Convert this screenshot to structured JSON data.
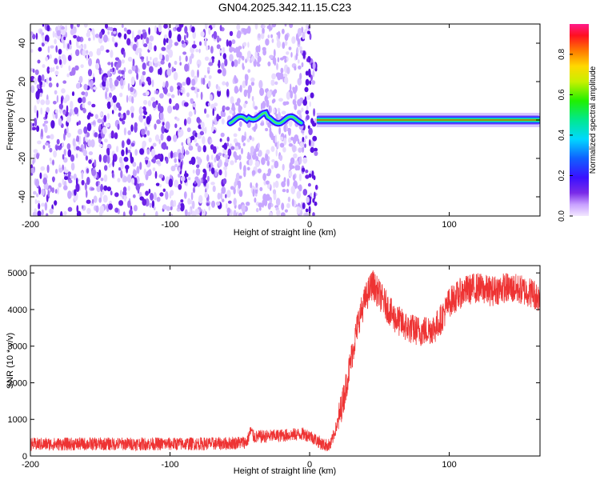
{
  "title": "GN04.2025.342.11.15.C23",
  "chart_data": [
    {
      "type": "heatmap",
      "name": "spectrogram",
      "xlabel": "Height of straight line (km)",
      "ylabel": "Frequency (Hz)",
      "xlim": [
        -200,
        165
      ],
      "ylim": [
        -50,
        50
      ],
      "xticks": [
        -200,
        -100,
        0,
        100
      ],
      "yticks": [
        -40,
        -20,
        0,
        20,
        40
      ],
      "description_of_values": {
        "noise_region_x": [
          -200,
          5
        ],
        "faded_region_x": [
          -55,
          5
        ],
        "signal_band_freq": 0,
        "signal_band_x": [
          -57,
          165
        ],
        "wobbly_segment_x": [
          -57,
          -5
        ],
        "strong_line_x": [
          5,
          165
        ]
      },
      "colorbar": {
        "label": "Normalized spectral amplitude",
        "range": [
          0,
          0.95
        ],
        "ticks": [
          0.0,
          0.2,
          0.4,
          0.6,
          0.8
        ]
      }
    },
    {
      "type": "line",
      "name": "snr",
      "xlabel": "Height of straight line (km)",
      "ylabel": "SNR (10 * v/v)",
      "xlim": [
        -200,
        165
      ],
      "ylim": [
        0,
        5200
      ],
      "xticks": [
        -200,
        -100,
        0,
        100
      ],
      "yticks": [
        0,
        1000,
        2000,
        3000,
        4000,
        5000
      ],
      "color": "#ee3333",
      "series": [
        {
          "name": "SNR",
          "x": [
            -200,
            -150,
            -100,
            -60,
            -45,
            -42,
            -40,
            -20,
            -5,
            0,
            10,
            15,
            20,
            25,
            30,
            35,
            40,
            45,
            50,
            60,
            70,
            80,
            90,
            95,
            100,
            110,
            120,
            130,
            140,
            150,
            160,
            165
          ],
          "y": [
            320,
            330,
            330,
            340,
            380,
            700,
            520,
            560,
            600,
            560,
            300,
            300,
            900,
            1700,
            2700,
            3700,
            4300,
            4700,
            4400,
            3800,
            3500,
            3400,
            3500,
            3800,
            4200,
            4500,
            4600,
            4500,
            4600,
            4550,
            4450,
            4300
          ]
        }
      ]
    }
  ]
}
